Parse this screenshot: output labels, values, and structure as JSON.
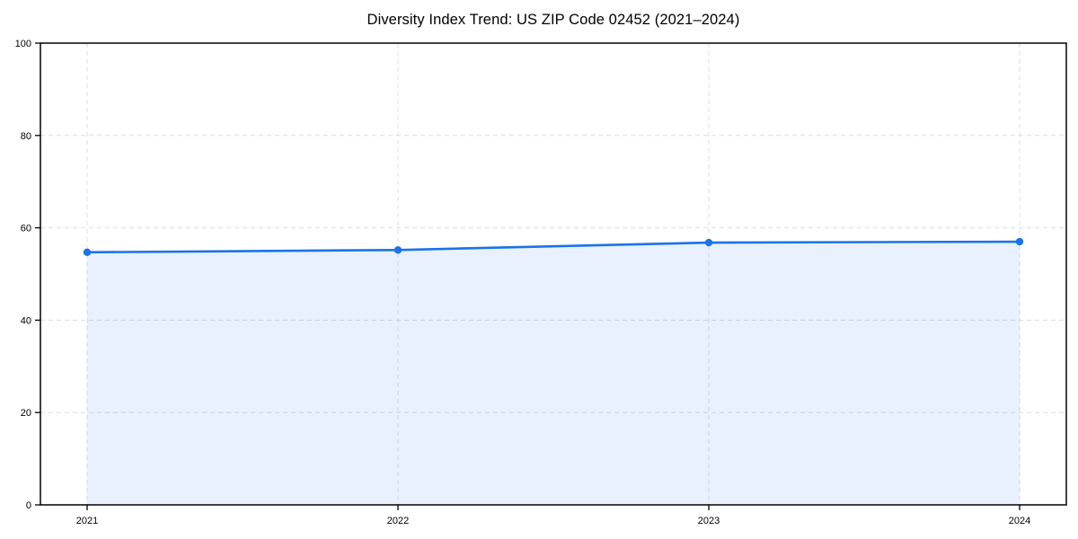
{
  "chart_data": {
    "type": "line",
    "title": "Diversity Index Trend: US ZIP Code 02452 (2021–2024)",
    "categories": [
      "2021",
      "2022",
      "2023",
      "2024"
    ],
    "series": [
      {
        "name": "Diversity Index",
        "values": [
          54.7,
          55.2,
          56.8,
          57.0
        ]
      }
    ],
    "xlabel": "",
    "ylabel": "",
    "ylim": [
      0,
      100
    ],
    "yticks": [
      0,
      20,
      40,
      60,
      80,
      100
    ],
    "grid": "dashed",
    "legend_position": "none",
    "area_fill": true,
    "marker": "circle",
    "colors": {
      "line": "#1a73e8",
      "marker": "#1a73e8",
      "area_fill": "rgba(26,115,232,0.10)",
      "gridline": "#dcdcdc",
      "axis": "#000000",
      "text": "#000000",
      "background": "#ffffff"
    }
  }
}
